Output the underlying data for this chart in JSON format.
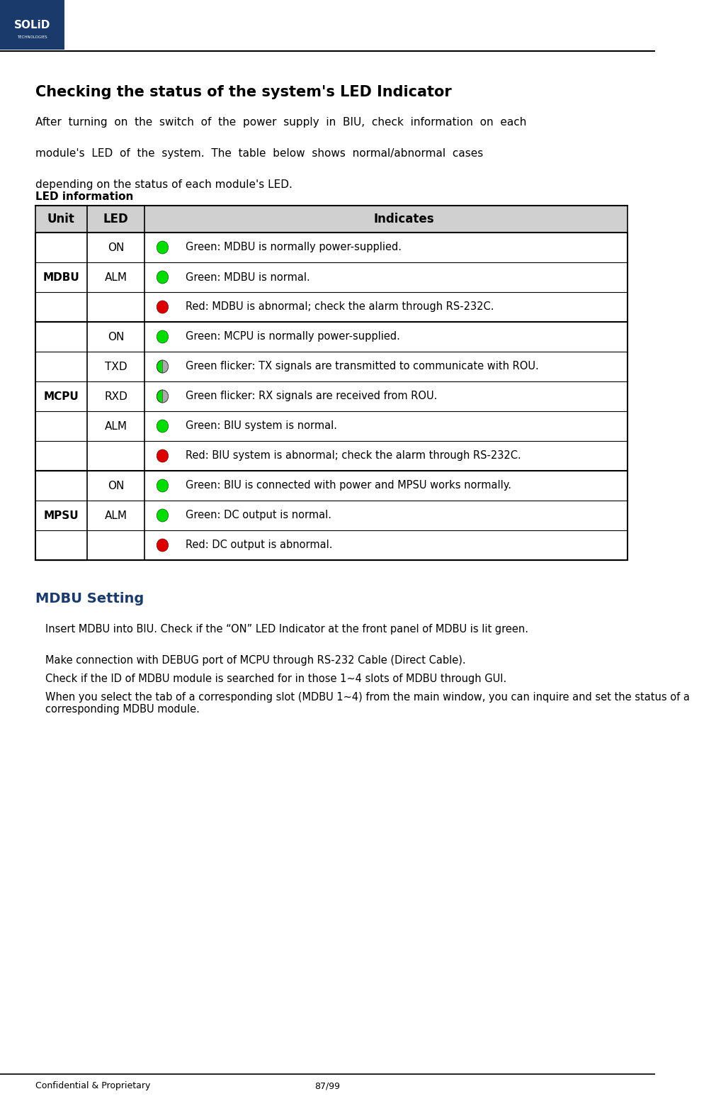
{
  "title": "Checking the status of the system's LED Indicator",
  "intro_text": "After turning on the switch of the power supply in BIU, check information on each module's LED of the system. The table below shows normal/abnormal cases depending on the status of each module's LED.",
  "table_label": "LED information",
  "header": [
    "Unit",
    "LED",
    "",
    "Indicates"
  ],
  "rows": [
    {
      "unit": "MDBU",
      "led_label": "ON",
      "led_type": "solid_green",
      "indicates": "Green: MDBU is normally power-supplied.",
      "unit_span_start": true,
      "unit_span_end": false
    },
    {
      "unit": "MDBU",
      "led_label": "ALM",
      "led_type": "solid_green",
      "indicates": "Green: MDBU is normal.",
      "unit_span_start": false,
      "unit_span_end": false
    },
    {
      "unit": "MDBU",
      "led_label": "",
      "led_type": "solid_red",
      "indicates": "Red: MDBU is abnormal; check the alarm through RS-232C.",
      "unit_span_start": false,
      "unit_span_end": true
    },
    {
      "unit": "MCPU",
      "led_label": "ON",
      "led_type": "solid_green",
      "indicates": "Green: MCPU is normally power-supplied.",
      "unit_span_start": true,
      "unit_span_end": false
    },
    {
      "unit": "MCPU",
      "led_label": "TXD",
      "led_type": "flicker",
      "indicates": "Green flicker: TX signals are transmitted to communicate with ROU.",
      "unit_span_start": false,
      "unit_span_end": false
    },
    {
      "unit": "MCPU",
      "led_label": "RXD",
      "led_type": "flicker",
      "indicates": "Green flicker: RX signals are received from ROU.",
      "unit_span_start": false,
      "unit_span_end": false
    },
    {
      "unit": "MCPU",
      "led_label": "ALM",
      "led_type": "solid_green",
      "indicates": "Green: BIU system is normal.",
      "unit_span_start": false,
      "unit_span_end": false
    },
    {
      "unit": "MCPU",
      "led_label": "",
      "led_type": "solid_red",
      "indicates": "Red: BIU system is abnormal; check the alarm through RS-232C.",
      "unit_span_start": false,
      "unit_span_end": true
    },
    {
      "unit": "MPSU",
      "led_label": "ON",
      "led_type": "solid_green",
      "indicates": "Green: BIU is connected with power and MPSU works normally.",
      "unit_span_start": true,
      "unit_span_end": false
    },
    {
      "unit": "MPSU",
      "led_label": "ALM",
      "led_type": "solid_green",
      "indicates": "Green: DC output is normal.",
      "unit_span_start": false,
      "unit_span_end": false
    },
    {
      "unit": "MPSU",
      "led_label": "",
      "led_type": "solid_red",
      "indicates": "Red: DC output is abnormal.",
      "unit_span_start": false,
      "unit_span_end": true
    }
  ],
  "setting_title": "MDBU Setting",
  "setting_bullets": [
    "Insert MDBU into BIU. Check if the “ON” LED Indicator at the front panel of MDBU is lit green.",
    "Make connection with DEBUG port of MCPU through RS-232 Cable (Direct Cable).",
    "Check if the ID of MDBU module is searched for in those 1~4 slots of MDBU through GUI.",
    "When you select the tab of a corresponding slot (MDBU 1~4) from the main window, you can inquire and set the status of a corresponding MDBU module."
  ],
  "footer_left": "Confidential & Proprietary",
  "footer_right": "87/99",
  "header_bg": "#d0d0d0",
  "row_bg": "#ffffff",
  "border_color": "#000000",
  "green_color": "#00dd00",
  "red_color": "#dd0000",
  "dark_green": "#008800",
  "logo_blue": "#1a3a6b",
  "title_color": "#000000",
  "setting_title_color": "#1a3a6b"
}
